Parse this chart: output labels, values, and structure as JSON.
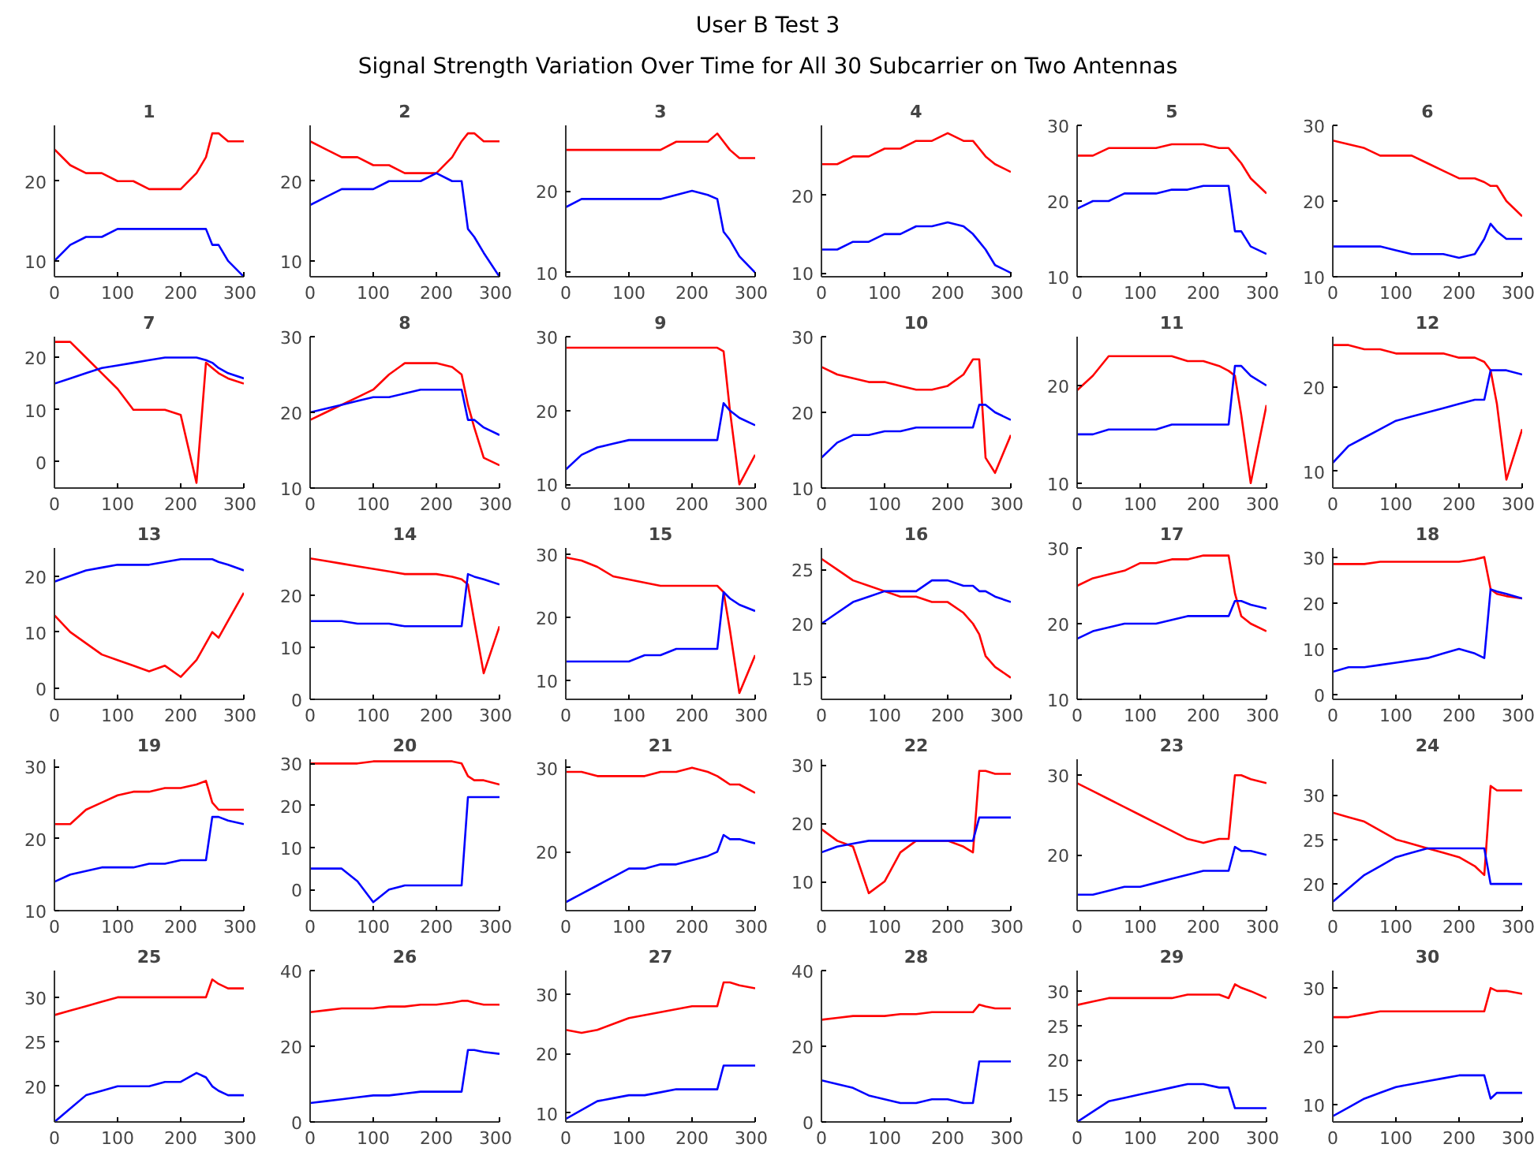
{
  "chart_data": [
    {
      "type": "other",
      "title": "User B Test 3",
      "subtitle": "Signal Strength Variation Over Time for All 30 Subcarrier on Two Antennas"
    },
    {
      "type": "line",
      "title": "1",
      "xlim": [
        0,
        300
      ],
      "xticks": [
        0,
        100,
        200,
        300
      ],
      "ylim": [
        8,
        27
      ],
      "yticks": [
        10,
        20
      ],
      "x": [
        0,
        25,
        50,
        75,
        100,
        125,
        150,
        175,
        200,
        225,
        240,
        250,
        260,
        275,
        300
      ],
      "series": [
        {
          "color": "#ff0000",
          "values": [
            24,
            22,
            21,
            21,
            20,
            20,
            19,
            19,
            19,
            21,
            23,
            26,
            26,
            25,
            25
          ]
        },
        {
          "color": "#0000ff",
          "values": [
            10,
            12,
            13,
            13,
            14,
            14,
            14,
            14,
            14,
            14,
            14,
            12,
            12,
            10,
            8
          ]
        }
      ]
    },
    {
      "type": "line",
      "title": "2",
      "xlim": [
        0,
        300
      ],
      "xticks": [
        0,
        100,
        200,
        300
      ],
      "ylim": [
        8,
        27
      ],
      "yticks": [
        10,
        20
      ],
      "x": [
        0,
        25,
        50,
        75,
        100,
        125,
        150,
        175,
        200,
        225,
        240,
        250,
        260,
        275,
        300
      ],
      "series": [
        {
          "color": "#ff0000",
          "values": [
            25,
            24,
            23,
            23,
            22,
            22,
            21,
            21,
            21,
            23,
            25,
            26,
            26,
            25,
            25
          ]
        },
        {
          "color": "#0000ff",
          "values": [
            17,
            18,
            19,
            19,
            19,
            20,
            20,
            20,
            21,
            20,
            20,
            14,
            13,
            11,
            8
          ]
        }
      ]
    },
    {
      "type": "line",
      "title": "3",
      "xlim": [
        0,
        300
      ],
      "xticks": [
        0,
        100,
        200,
        300
      ],
      "ylim": [
        9.5,
        28
      ],
      "yticks": [
        10,
        20
      ],
      "x": [
        0,
        25,
        50,
        75,
        100,
        125,
        150,
        175,
        200,
        225,
        240,
        250,
        260,
        275,
        300
      ],
      "series": [
        {
          "color": "#ff0000",
          "values": [
            25,
            25,
            25,
            25,
            25,
            25,
            25,
            26,
            26,
            26,
            27,
            26,
            25,
            24,
            24
          ]
        },
        {
          "color": "#0000ff",
          "values": [
            18,
            19,
            19,
            19,
            19,
            19,
            19,
            19.5,
            20,
            19.5,
            19,
            15,
            14,
            12,
            10
          ]
        }
      ]
    },
    {
      "type": "line",
      "title": "4",
      "xlim": [
        0,
        300
      ],
      "xticks": [
        0,
        100,
        200,
        300
      ],
      "ylim": [
        9.5,
        29
      ],
      "yticks": [
        10,
        20
      ],
      "x": [
        0,
        25,
        50,
        75,
        100,
        125,
        150,
        175,
        200,
        225,
        240,
        250,
        260,
        275,
        300
      ],
      "series": [
        {
          "color": "#ff0000",
          "values": [
            24,
            24,
            25,
            25,
            26,
            26,
            27,
            27,
            28,
            27,
            27,
            26,
            25,
            24,
            23
          ]
        },
        {
          "color": "#0000ff",
          "values": [
            13,
            13,
            14,
            14,
            15,
            15,
            16,
            16,
            16.5,
            16,
            15,
            14,
            13,
            11,
            10
          ]
        }
      ]
    },
    {
      "type": "line",
      "title": "5",
      "xlim": [
        0,
        300
      ],
      "xticks": [
        0,
        100,
        200,
        300
      ],
      "ylim": [
        10,
        30
      ],
      "yticks": [
        10,
        20,
        30
      ],
      "x": [
        0,
        25,
        50,
        75,
        100,
        125,
        150,
        175,
        200,
        225,
        240,
        250,
        260,
        275,
        300
      ],
      "series": [
        {
          "color": "#ff0000",
          "values": [
            26,
            26,
            27,
            27,
            27,
            27,
            27.5,
            27.5,
            27.5,
            27,
            27,
            26,
            25,
            23,
            21
          ]
        },
        {
          "color": "#0000ff",
          "values": [
            19,
            20,
            20,
            21,
            21,
            21,
            21.5,
            21.5,
            22,
            22,
            22,
            16,
            16,
            14,
            13
          ]
        }
      ]
    },
    {
      "type": "line",
      "title": "6",
      "xlim": [
        0,
        300
      ],
      "xticks": [
        0,
        100,
        200,
        300
      ],
      "ylim": [
        10,
        30
      ],
      "yticks": [
        10,
        20,
        30
      ],
      "x": [
        0,
        25,
        50,
        75,
        100,
        125,
        150,
        175,
        200,
        225,
        240,
        250,
        260,
        275,
        300
      ],
      "series": [
        {
          "color": "#ff0000",
          "values": [
            28,
            27.5,
            27,
            26,
            26,
            26,
            25,
            24,
            23,
            23,
            22.5,
            22,
            22,
            20,
            18
          ]
        },
        {
          "color": "#0000ff",
          "values": [
            14,
            14,
            14,
            14,
            13.5,
            13,
            13,
            13,
            12.5,
            13,
            15,
            17,
            16,
            15,
            15
          ]
        }
      ]
    },
    {
      "type": "line",
      "title": "7",
      "xlim": [
        0,
        300
      ],
      "xticks": [
        0,
        100,
        200,
        300
      ],
      "ylim": [
        -5,
        24
      ],
      "yticks": [
        0,
        10,
        20
      ],
      "x": [
        0,
        25,
        50,
        75,
        100,
        125,
        150,
        175,
        200,
        225,
        240,
        250,
        260,
        275,
        300
      ],
      "series": [
        {
          "color": "#ff0000",
          "values": [
            23,
            23,
            20,
            17,
            14,
            10,
            10,
            10,
            9,
            -4,
            19,
            18,
            17,
            16,
            15
          ]
        },
        {
          "color": "#0000ff",
          "values": [
            15,
            16,
            17,
            18,
            18.5,
            19,
            19.5,
            20,
            20,
            20,
            19.5,
            19,
            18,
            17,
            16
          ]
        }
      ]
    },
    {
      "type": "line",
      "title": "8",
      "xlim": [
        0,
        300
      ],
      "xticks": [
        0,
        100,
        200,
        300
      ],
      "ylim": [
        10,
        30
      ],
      "yticks": [
        10,
        20,
        30
      ],
      "x": [
        0,
        25,
        50,
        75,
        100,
        125,
        150,
        175,
        200,
        225,
        240,
        250,
        260,
        275,
        300
      ],
      "series": [
        {
          "color": "#ff0000",
          "values": [
            19,
            20,
            21,
            22,
            23,
            25,
            26.5,
            26.5,
            26.5,
            26,
            25,
            21,
            18,
            14,
            13
          ]
        },
        {
          "color": "#0000ff",
          "values": [
            20,
            20.5,
            21,
            21.5,
            22,
            22,
            22.5,
            23,
            23,
            23,
            23,
            19,
            19,
            18,
            17
          ]
        }
      ]
    },
    {
      "type": "line",
      "title": "9",
      "xlim": [
        0,
        300
      ],
      "xticks": [
        0,
        100,
        200,
        300
      ],
      "ylim": [
        9.5,
        30
      ],
      "yticks": [
        10,
        20,
        30
      ],
      "x": [
        0,
        25,
        50,
        75,
        100,
        125,
        150,
        175,
        200,
        225,
        240,
        250,
        260,
        275,
        300
      ],
      "series": [
        {
          "color": "#ff0000",
          "values": [
            28.5,
            28.5,
            28.5,
            28.5,
            28.5,
            28.5,
            28.5,
            28.5,
            28.5,
            28.5,
            28.5,
            28,
            20,
            10,
            14
          ]
        },
        {
          "color": "#0000ff",
          "values": [
            12,
            14,
            15,
            15.5,
            16,
            16,
            16,
            16,
            16,
            16,
            16,
            21,
            20,
            19,
            18
          ]
        }
      ]
    },
    {
      "type": "line",
      "title": "10",
      "xlim": [
        0,
        300
      ],
      "xticks": [
        0,
        100,
        200,
        300
      ],
      "ylim": [
        10,
        30
      ],
      "yticks": [
        10,
        20,
        30
      ],
      "x": [
        0,
        25,
        50,
        75,
        100,
        125,
        150,
        175,
        200,
        225,
        240,
        250,
        260,
        275,
        300
      ],
      "series": [
        {
          "color": "#ff0000",
          "values": [
            26,
            25,
            24.5,
            24,
            24,
            23.5,
            23,
            23,
            23.5,
            25,
            27,
            27,
            14,
            12,
            17
          ]
        },
        {
          "color": "#0000ff",
          "values": [
            14,
            16,
            17,
            17,
            17.5,
            17.5,
            18,
            18,
            18,
            18,
            18,
            21,
            21,
            20,
            19
          ]
        }
      ]
    },
    {
      "type": "line",
      "title": "11",
      "xlim": [
        0,
        300
      ],
      "xticks": [
        0,
        100,
        200,
        300
      ],
      "ylim": [
        9.5,
        25
      ],
      "yticks": [
        10,
        20
      ],
      "x": [
        0,
        25,
        50,
        75,
        100,
        125,
        150,
        175,
        200,
        225,
        240,
        250,
        260,
        275,
        300
      ],
      "series": [
        {
          "color": "#ff0000",
          "values": [
            19.5,
            21,
            23,
            23,
            23,
            23,
            23,
            22.5,
            22.5,
            22,
            21.5,
            21,
            17,
            10,
            18
          ]
        },
        {
          "color": "#0000ff",
          "values": [
            15,
            15,
            15.5,
            15.5,
            15.5,
            15.5,
            16,
            16,
            16,
            16,
            16,
            22,
            22,
            21,
            20
          ]
        }
      ]
    },
    {
      "type": "line",
      "title": "12",
      "xlim": [
        0,
        300
      ],
      "xticks": [
        0,
        100,
        200,
        300
      ],
      "ylim": [
        8,
        26
      ],
      "yticks": [
        10,
        20
      ],
      "x": [
        0,
        25,
        50,
        75,
        100,
        125,
        150,
        175,
        200,
        225,
        240,
        250,
        260,
        275,
        300
      ],
      "series": [
        {
          "color": "#ff0000",
          "values": [
            25,
            25,
            24.5,
            24.5,
            24,
            24,
            24,
            24,
            23.5,
            23.5,
            23,
            22,
            18,
            9,
            15
          ]
        },
        {
          "color": "#0000ff",
          "values": [
            11,
            13,
            14,
            15,
            16,
            16.5,
            17,
            17.5,
            18,
            18.5,
            18.5,
            22,
            22,
            22,
            21.5
          ]
        }
      ]
    },
    {
      "type": "line",
      "title": "13",
      "xlim": [
        0,
        300
      ],
      "xticks": [
        0,
        100,
        200,
        300
      ],
      "ylim": [
        -2,
        25
      ],
      "yticks": [
        0,
        10,
        20
      ],
      "x": [
        0,
        25,
        50,
        75,
        100,
        125,
        150,
        175,
        200,
        225,
        240,
        250,
        260,
        275,
        300
      ],
      "series": [
        {
          "color": "#ff0000",
          "values": [
            13,
            10,
            8,
            6,
            5,
            4,
            3,
            4,
            2,
            5,
            8,
            10,
            9,
            12,
            17
          ]
        },
        {
          "color": "#0000ff",
          "values": [
            19,
            20,
            21,
            21.5,
            22,
            22,
            22,
            22.5,
            23,
            23,
            23,
            23,
            22.5,
            22,
            21
          ]
        }
      ]
    },
    {
      "type": "line",
      "title": "14",
      "xlim": [
        0,
        300
      ],
      "xticks": [
        0,
        100,
        200,
        300
      ],
      "ylim": [
        0,
        29
      ],
      "yticks": [
        0,
        10,
        20
      ],
      "x": [
        0,
        25,
        50,
        75,
        100,
        125,
        150,
        175,
        200,
        225,
        240,
        250,
        260,
        275,
        300
      ],
      "series": [
        {
          "color": "#ff0000",
          "values": [
            27,
            26.5,
            26,
            25.5,
            25,
            24.5,
            24,
            24,
            24,
            23.5,
            23,
            22,
            15,
            5,
            14
          ]
        },
        {
          "color": "#0000ff",
          "values": [
            15,
            15,
            15,
            14.5,
            14.5,
            14.5,
            14,
            14,
            14,
            14,
            14,
            24,
            23.5,
            23,
            22
          ]
        }
      ]
    },
    {
      "type": "line",
      "title": "15",
      "xlim": [
        0,
        300
      ],
      "xticks": [
        0,
        100,
        200,
        300
      ],
      "ylim": [
        7,
        31
      ],
      "yticks": [
        10,
        20,
        30
      ],
      "x": [
        0,
        25,
        50,
        75,
        100,
        125,
        150,
        175,
        200,
        225,
        240,
        250,
        260,
        275,
        300
      ],
      "series": [
        {
          "color": "#ff0000",
          "values": [
            29.5,
            29,
            28,
            26.5,
            26,
            25.5,
            25,
            25,
            25,
            25,
            25,
            24,
            18,
            8,
            14
          ]
        },
        {
          "color": "#0000ff",
          "values": [
            13,
            13,
            13,
            13,
            13,
            14,
            14,
            15,
            15,
            15,
            15,
            24,
            23,
            22,
            21
          ]
        }
      ]
    },
    {
      "type": "line",
      "title": "16",
      "xlim": [
        0,
        300
      ],
      "xticks": [
        0,
        100,
        200,
        300
      ],
      "ylim": [
        13,
        27
      ],
      "yticks": [
        15,
        20,
        25
      ],
      "x": [
        0,
        25,
        50,
        75,
        100,
        125,
        150,
        175,
        200,
        225,
        240,
        250,
        260,
        275,
        300
      ],
      "series": [
        {
          "color": "#ff0000",
          "values": [
            26,
            25,
            24,
            23.5,
            23,
            22.5,
            22.5,
            22,
            22,
            21,
            20,
            19,
            17,
            16,
            15
          ]
        },
        {
          "color": "#0000ff",
          "values": [
            20,
            21,
            22,
            22.5,
            23,
            23,
            23,
            24,
            24,
            23.5,
            23.5,
            23,
            23,
            22.5,
            22
          ]
        }
      ]
    },
    {
      "type": "line",
      "title": "17",
      "xlim": [
        0,
        300
      ],
      "xticks": [
        0,
        100,
        200,
        300
      ],
      "ylim": [
        10,
        30
      ],
      "yticks": [
        10,
        20,
        30
      ],
      "x": [
        0,
        25,
        50,
        75,
        100,
        125,
        150,
        175,
        200,
        225,
        240,
        250,
        260,
        275,
        300
      ],
      "series": [
        {
          "color": "#ff0000",
          "values": [
            25,
            26,
            26.5,
            27,
            28,
            28,
            28.5,
            28.5,
            29,
            29,
            29,
            24,
            21,
            20,
            19
          ]
        },
        {
          "color": "#0000ff",
          "values": [
            18,
            19,
            19.5,
            20,
            20,
            20,
            20.5,
            21,
            21,
            21,
            21,
            23,
            23,
            22.5,
            22
          ]
        }
      ]
    },
    {
      "type": "line",
      "title": "18",
      "xlim": [
        0,
        300
      ],
      "xticks": [
        0,
        100,
        200,
        300
      ],
      "ylim": [
        -1,
        32
      ],
      "yticks": [
        0,
        10,
        20,
        30
      ],
      "x": [
        0,
        25,
        50,
        75,
        100,
        125,
        150,
        175,
        200,
        225,
        240,
        250,
        260,
        275,
        300
      ],
      "series": [
        {
          "color": "#ff0000",
          "values": [
            28.5,
            28.5,
            28.5,
            29,
            29,
            29,
            29,
            29,
            29,
            29.5,
            30,
            23,
            22,
            21.5,
            21
          ]
        },
        {
          "color": "#0000ff",
          "values": [
            5,
            6,
            6,
            6.5,
            7,
            7.5,
            8,
            9,
            10,
            9,
            8,
            23,
            22.5,
            22,
            21
          ]
        }
      ]
    },
    {
      "type": "line",
      "title": "19",
      "xlim": [
        0,
        300
      ],
      "xticks": [
        0,
        100,
        200,
        300
      ],
      "ylim": [
        10,
        31
      ],
      "yticks": [
        10,
        20,
        30
      ],
      "x": [
        0,
        25,
        50,
        75,
        100,
        125,
        150,
        175,
        200,
        225,
        240,
        250,
        260,
        275,
        300
      ],
      "series": [
        {
          "color": "#ff0000",
          "values": [
            22,
            22,
            24,
            25,
            26,
            26.5,
            26.5,
            27,
            27,
            27.5,
            28,
            25,
            24,
            24,
            24
          ]
        },
        {
          "color": "#0000ff",
          "values": [
            14,
            15,
            15.5,
            16,
            16,
            16,
            16.5,
            16.5,
            17,
            17,
            17,
            23,
            23,
            22.5,
            22
          ]
        }
      ]
    },
    {
      "type": "line",
      "title": "20",
      "xlim": [
        0,
        300
      ],
      "xticks": [
        0,
        100,
        200,
        300
      ],
      "ylim": [
        -5,
        31
      ],
      "yticks": [
        0,
        10,
        20,
        30
      ],
      "x": [
        0,
        25,
        50,
        75,
        100,
        125,
        150,
        175,
        200,
        225,
        240,
        250,
        260,
        275,
        300
      ],
      "series": [
        {
          "color": "#ff0000",
          "values": [
            30,
            30,
            30,
            30,
            30.5,
            30.5,
            30.5,
            30.5,
            30.5,
            30.5,
            30,
            27,
            26,
            26,
            25
          ]
        },
        {
          "color": "#0000ff",
          "values": [
            5,
            5,
            5,
            2,
            -3,
            0,
            1,
            1,
            1,
            1,
            1,
            22,
            22,
            22,
            22
          ]
        }
      ]
    },
    {
      "type": "line",
      "title": "21",
      "xlim": [
        0,
        300
      ],
      "xticks": [
        0,
        100,
        200,
        300
      ],
      "ylim": [
        13,
        31
      ],
      "yticks": [
        20,
        30
      ],
      "x": [
        0,
        25,
        50,
        75,
        100,
        125,
        150,
        175,
        200,
        225,
        240,
        250,
        260,
        275,
        300
      ],
      "series": [
        {
          "color": "#ff0000",
          "values": [
            29.5,
            29.5,
            29,
            29,
            29,
            29,
            29.5,
            29.5,
            30,
            29.5,
            29,
            28.5,
            28,
            28,
            27
          ]
        },
        {
          "color": "#0000ff",
          "values": [
            14,
            15,
            16,
            17,
            18,
            18,
            18.5,
            18.5,
            19,
            19.5,
            20,
            22,
            21.5,
            21.5,
            21
          ]
        }
      ]
    },
    {
      "type": "line",
      "title": "22",
      "xlim": [
        0,
        300
      ],
      "xticks": [
        0,
        100,
        200,
        300
      ],
      "ylim": [
        5,
        31
      ],
      "yticks": [
        10,
        20,
        30
      ],
      "x": [
        0,
        25,
        50,
        75,
        100,
        125,
        150,
        175,
        200,
        225,
        240,
        250,
        260,
        275,
        300
      ],
      "series": [
        {
          "color": "#ff0000",
          "values": [
            19,
            17,
            16,
            8,
            10,
            15,
            17,
            17,
            17,
            16,
            15,
            29,
            29,
            28.5,
            28.5
          ]
        },
        {
          "color": "#0000ff",
          "values": [
            15,
            16,
            16.5,
            17,
            17,
            17,
            17,
            17,
            17,
            17,
            17,
            21,
            21,
            21,
            21
          ]
        }
      ]
    },
    {
      "type": "line",
      "title": "23",
      "xlim": [
        0,
        300
      ],
      "xticks": [
        0,
        100,
        200,
        300
      ],
      "ylim": [
        13,
        32
      ],
      "yticks": [
        20,
        30
      ],
      "x": [
        0,
        25,
        50,
        75,
        100,
        125,
        150,
        175,
        200,
        225,
        240,
        250,
        260,
        275,
        300
      ],
      "series": [
        {
          "color": "#ff0000",
          "values": [
            29,
            28,
            27,
            26,
            25,
            24,
            23,
            22,
            21.5,
            22,
            22,
            30,
            30,
            29.5,
            29
          ]
        },
        {
          "color": "#0000ff",
          "values": [
            15,
            15,
            15.5,
            16,
            16,
            16.5,
            17,
            17.5,
            18,
            18,
            18,
            21,
            20.5,
            20.5,
            20
          ]
        }
      ]
    },
    {
      "type": "line",
      "title": "24",
      "xlim": [
        0,
        300
      ],
      "xticks": [
        0,
        100,
        200,
        300
      ],
      "ylim": [
        17,
        34
      ],
      "yticks": [
        20,
        25,
        30
      ],
      "x": [
        0,
        25,
        50,
        75,
        100,
        125,
        150,
        175,
        200,
        225,
        240,
        250,
        260,
        275,
        300
      ],
      "series": [
        {
          "color": "#ff0000",
          "values": [
            28,
            27.5,
            27,
            26,
            25,
            24.5,
            24,
            23.5,
            23,
            22,
            21,
            31,
            30.5,
            30.5,
            30.5
          ]
        },
        {
          "color": "#0000ff",
          "values": [
            18,
            19.5,
            21,
            22,
            23,
            23.5,
            24,
            24,
            24,
            24,
            24,
            20,
            20,
            20,
            20
          ]
        }
      ]
    },
    {
      "type": "line",
      "title": "25",
      "xlim": [
        0,
        300
      ],
      "xticks": [
        0,
        100,
        200,
        300
      ],
      "ylim": [
        16,
        33
      ],
      "yticks": [
        20,
        25,
        30
      ],
      "x": [
        0,
        25,
        50,
        75,
        100,
        125,
        150,
        175,
        200,
        225,
        240,
        250,
        260,
        275,
        300
      ],
      "series": [
        {
          "color": "#ff0000",
          "values": [
            28,
            28.5,
            29,
            29.5,
            30,
            30,
            30,
            30,
            30,
            30,
            30,
            32,
            31.5,
            31,
            31
          ]
        },
        {
          "color": "#0000ff",
          "values": [
            16,
            17.5,
            19,
            19.5,
            20,
            20,
            20,
            20.5,
            20.5,
            21.5,
            21,
            20,
            19.5,
            19,
            19
          ]
        }
      ]
    },
    {
      "type": "line",
      "title": "26",
      "xlim": [
        0,
        300
      ],
      "xticks": [
        0,
        100,
        200,
        300
      ],
      "ylim": [
        0,
        40
      ],
      "yticks": [
        0,
        20,
        40
      ],
      "x": [
        0,
        25,
        50,
        75,
        100,
        125,
        150,
        175,
        200,
        225,
        240,
        250,
        260,
        275,
        300
      ],
      "series": [
        {
          "color": "#ff0000",
          "values": [
            29,
            29.5,
            30,
            30,
            30,
            30.5,
            30.5,
            31,
            31,
            31.5,
            32,
            32,
            31.5,
            31,
            31
          ]
        },
        {
          "color": "#0000ff",
          "values": [
            5,
            5.5,
            6,
            6.5,
            7,
            7,
            7.5,
            8,
            8,
            8,
            8,
            19,
            19,
            18.5,
            18
          ]
        }
      ]
    },
    {
      "type": "line",
      "title": "27",
      "xlim": [
        0,
        300
      ],
      "xticks": [
        0,
        100,
        200,
        300
      ],
      "ylim": [
        8.5,
        34
      ],
      "yticks": [
        10,
        20,
        30
      ],
      "x": [
        0,
        25,
        50,
        75,
        100,
        125,
        150,
        175,
        200,
        225,
        240,
        250,
        260,
        275,
        300
      ],
      "series": [
        {
          "color": "#ff0000",
          "values": [
            24,
            23.5,
            24,
            25,
            26,
            26.5,
            27,
            27.5,
            28,
            28,
            28,
            32,
            32,
            31.5,
            31
          ]
        },
        {
          "color": "#0000ff",
          "values": [
            9,
            10.5,
            12,
            12.5,
            13,
            13,
            13.5,
            14,
            14,
            14,
            14,
            18,
            18,
            18,
            18
          ]
        }
      ]
    },
    {
      "type": "line",
      "title": "28",
      "xlim": [
        0,
        300
      ],
      "xticks": [
        0,
        100,
        200,
        300
      ],
      "ylim": [
        0,
        40
      ],
      "yticks": [
        0,
        20,
        40
      ],
      "x": [
        0,
        25,
        50,
        75,
        100,
        125,
        150,
        175,
        200,
        225,
        240,
        250,
        260,
        275,
        300
      ],
      "series": [
        {
          "color": "#ff0000",
          "values": [
            27,
            27.5,
            28,
            28,
            28,
            28.5,
            28.5,
            29,
            29,
            29,
            29,
            31,
            30.5,
            30,
            30
          ]
        },
        {
          "color": "#0000ff",
          "values": [
            11,
            10,
            9,
            7,
            6,
            5,
            5,
            6,
            6,
            5,
            5,
            16,
            16,
            16,
            16
          ]
        }
      ]
    },
    {
      "type": "line",
      "title": "29",
      "xlim": [
        0,
        300
      ],
      "xticks": [
        0,
        100,
        200,
        300
      ],
      "ylim": [
        11,
        33
      ],
      "yticks": [
        15,
        20,
        25,
        30
      ],
      "x": [
        0,
        25,
        50,
        75,
        100,
        125,
        150,
        175,
        200,
        225,
        240,
        250,
        260,
        275,
        300
      ],
      "series": [
        {
          "color": "#ff0000",
          "values": [
            28,
            28.5,
            29,
            29,
            29,
            29,
            29,
            29.5,
            29.5,
            29.5,
            29,
            31,
            30.5,
            30,
            29
          ]
        },
        {
          "color": "#0000ff",
          "values": [
            11,
            12.5,
            14,
            14.5,
            15,
            15.5,
            16,
            16.5,
            16.5,
            16,
            16,
            13,
            13,
            13,
            13
          ]
        }
      ]
    },
    {
      "type": "line",
      "title": "30",
      "xlim": [
        0,
        300
      ],
      "xticks": [
        0,
        100,
        200,
        300
      ],
      "ylim": [
        7,
        33
      ],
      "yticks": [
        10,
        20,
        30
      ],
      "x": [
        0,
        25,
        50,
        75,
        100,
        125,
        150,
        175,
        200,
        225,
        240,
        250,
        260,
        275,
        300
      ],
      "series": [
        {
          "color": "#ff0000",
          "values": [
            25,
            25,
            25.5,
            26,
            26,
            26,
            26,
            26,
            26,
            26,
            26,
            30,
            29.5,
            29.5,
            29
          ]
        },
        {
          "color": "#0000ff",
          "values": [
            8,
            9.5,
            11,
            12,
            13,
            13.5,
            14,
            14.5,
            15,
            15,
            15,
            11,
            12,
            12,
            12
          ]
        }
      ]
    }
  ]
}
